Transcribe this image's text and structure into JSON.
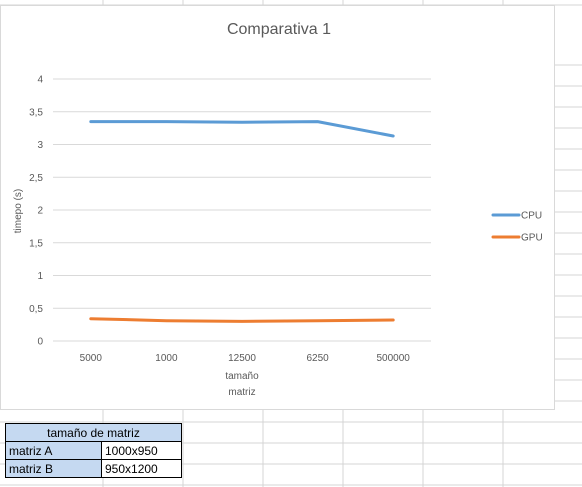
{
  "chart_data": {
    "type": "line",
    "title": "Comparativa 1",
    "xlabel": "tamaño matriz",
    "ylabel": "timepo (s)",
    "categories": [
      "5000",
      "1000",
      "12500",
      "6250",
      "500000"
    ],
    "ylim": [
      0,
      4
    ],
    "yticks": [
      "0",
      "0,5",
      "1",
      "1,5",
      "2",
      "2,5",
      "3",
      "3,5",
      "4"
    ],
    "grid": true,
    "legend_position": "right",
    "series": [
      {
        "name": "CPU",
        "color": "#5b9bd5",
        "values": [
          3.35,
          3.35,
          3.34,
          3.35,
          3.13
        ]
      },
      {
        "name": "GPU",
        "color": "#ed7d31",
        "values": [
          0.34,
          0.31,
          0.3,
          0.31,
          0.32
        ]
      }
    ]
  },
  "table": {
    "header": "tamaño de matriz",
    "rows": [
      {
        "label": "matriz A",
        "value": "1000x950"
      },
      {
        "label": "matriz B",
        "value": "950x1200"
      }
    ]
  }
}
